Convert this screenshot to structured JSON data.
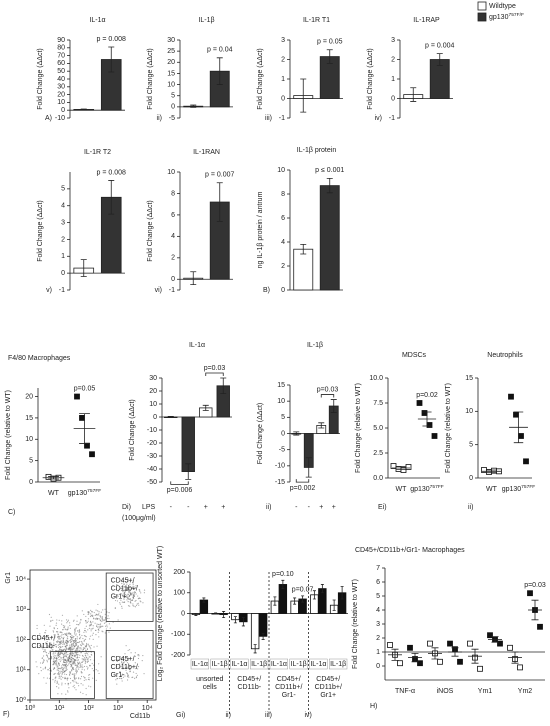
{
  "legend": [
    {
      "name": "Wildtype",
      "color": "#ffffff"
    },
    {
      "name": "gp130",
      "sup": "757F/F",
      "color": "#333333"
    }
  ],
  "chart_data": [
    {
      "type": "bar",
      "title": "IL-1α",
      "panel": "A)",
      "ylabel": "Fold Change (ΔΔct)",
      "ylim": [
        -10,
        90
      ],
      "yticks": [
        -10,
        0,
        10,
        20,
        30,
        40,
        50,
        60,
        70,
        80,
        90
      ],
      "categories": [
        null,
        null
      ],
      "values": [
        1,
        65
      ],
      "errors": [
        0.5,
        16
      ],
      "colors": [
        "#ffffff",
        "#333333"
      ],
      "p_labels": [
        null,
        "p = 0.008"
      ]
    },
    {
      "type": "bar",
      "title": "IL-1β",
      "panel": "ii)",
      "ylabel": "Fold Change (ΔΔct)",
      "ylim": [
        -5,
        30
      ],
      "yticks": [
        -5,
        0,
        5,
        10,
        15,
        20,
        25,
        30
      ],
      "categories": [
        null,
        null
      ],
      "values": [
        0.3,
        16
      ],
      "errors": [
        0.5,
        6
      ],
      "colors": [
        "#ffffff",
        "#333333"
      ],
      "p_labels": [
        null,
        "p = 0.04"
      ]
    },
    {
      "type": "bar",
      "title": "IL-1R T1",
      "panel": "iii)",
      "ylabel": "Fold Change (ΔΔct)",
      "ylim": [
        -1,
        3
      ],
      "yticks": [
        -1,
        0,
        1,
        2,
        3
      ],
      "categories": [
        null,
        null
      ],
      "values": [
        0.15,
        2.15
      ],
      "errors": [
        0.85,
        0.35
      ],
      "colors": [
        "#ffffff",
        "#333333"
      ],
      "p_labels": [
        null,
        "p = 0.05"
      ]
    },
    {
      "type": "bar",
      "title": "IL-1RAP",
      "panel": "iv)",
      "ylabel": "Fold Change (ΔΔct)",
      "ylim": [
        -1,
        3
      ],
      "yticks": [
        -1,
        0,
        1,
        2,
        3
      ],
      "categories": [
        null,
        null
      ],
      "values": [
        0.2,
        2.0
      ],
      "errors": [
        0.35,
        0.3
      ],
      "colors": [
        "#ffffff",
        "#333333"
      ],
      "p_labels": [
        null,
        "p = 0.004"
      ]
    },
    {
      "type": "bar",
      "title": "IL-1R T2",
      "panel": "v)",
      "ylabel": "Fold Change (ΔΔct)",
      "ylim": [
        -1,
        6
      ],
      "yticks": [
        -1,
        0,
        1,
        2,
        3,
        4,
        5
      ],
      "categories": [
        null,
        null
      ],
      "values": [
        0.3,
        4.5
      ],
      "errors": [
        0.5,
        1.0
      ],
      "colors": [
        "#ffffff",
        "#333333"
      ],
      "p_labels": [
        null,
        "p = 0.008"
      ]
    },
    {
      "type": "bar",
      "title": "IL-1RAN",
      "panel": "vi)",
      "ylabel": "Fold Change (ΔΔct)",
      "ylim": [
        -1,
        10
      ],
      "yticks": [
        -1,
        0,
        2,
        4,
        6,
        8,
        10
      ],
      "categories": [
        null,
        null
      ],
      "values": [
        0.1,
        7.2
      ],
      "errors": [
        0.6,
        1.8
      ],
      "colors": [
        "#ffffff",
        "#333333"
      ],
      "p_labels": [
        null,
        "p = 0.007"
      ]
    },
    {
      "type": "bar",
      "title": "IL-1β protein",
      "panel": "B)",
      "ylabel": "ng IL-1β protein / antrum",
      "ylim": [
        0,
        10
      ],
      "yticks": [
        0,
        2,
        4,
        6,
        8,
        10
      ],
      "categories": [
        null,
        null
      ],
      "values": [
        3.4,
        8.7
      ],
      "errors": [
        0.4,
        0.6
      ],
      "colors": [
        "#ffffff",
        "#333333"
      ],
      "p_labels": [
        null,
        "p ≤ 0.001"
      ]
    },
    {
      "type": "dot",
      "title": "F4/80 Macrophages",
      "panel": "C)",
      "ylabel": "Fold Change (relative to WT)",
      "ylim": [
        0,
        22
      ],
      "yticks": [
        0,
        5,
        10,
        15,
        20
      ],
      "groups": [
        {
          "label": "WT",
          "marker": "open",
          "points": [
            1.2,
            0.8,
            1.0
          ],
          "mean": 1.0,
          "error": 0.3
        },
        {
          "label": "gp130",
          "label_sup": "757FF",
          "marker": "filled",
          "points": [
            20,
            15,
            8.5,
            6.5
          ],
          "mean": 12.5,
          "error": 3.5,
          "p_label": "p=0.05"
        }
      ]
    },
    {
      "type": "bar",
      "title": "IL-1α",
      "panel": "Di)",
      "ylabel": "Fold Change (ΔΔct)",
      "ylim": [
        -50,
        30
      ],
      "yticks": [
        -50,
        -40,
        -30,
        -20,
        -10,
        0,
        10,
        20,
        30
      ],
      "categories": [
        null,
        null,
        null,
        null
      ],
      "values": [
        0,
        -42,
        7,
        24
      ],
      "errors": [
        0.5,
        6,
        2,
        6
      ],
      "colors": [
        "#ffffff",
        "#333333",
        "#ffffff",
        "#333333"
      ],
      "row_label": [
        "LPS",
        "(100μg/ml)"
      ],
      "row_values": [
        "-",
        "-",
        "+",
        "+"
      ],
      "brackets": [
        {
          "bars": [
            2,
            3
          ],
          "label": "p=0.03"
        },
        {
          "bars": [
            0,
            1
          ],
          "label": "p=0.006"
        }
      ]
    },
    {
      "type": "bar",
      "title": "IL-1β",
      "panel": "ii)",
      "ylabel": "Fold Change (ΔΔct)",
      "ylim": [
        -15,
        15
      ],
      "yticks": [
        -15,
        -10,
        -5,
        0,
        5,
        10,
        15
      ],
      "categories": [
        null,
        null,
        null,
        null
      ],
      "values": [
        0,
        -10.5,
        2.5,
        8.5
      ],
      "errors": [
        0.5,
        3,
        0.8,
        2
      ],
      "colors": [
        "#ffffff",
        "#333333",
        "#ffffff",
        "#333333"
      ],
      "row_values": [
        "-",
        "-",
        "+",
        "+"
      ],
      "brackets": [
        {
          "bars": [
            2,
            3
          ],
          "label": "p=0.03"
        },
        {
          "bars": [
            0,
            1
          ],
          "label": "p=0.002"
        }
      ]
    },
    {
      "type": "dot",
      "title": "MDSCs",
      "panel": "Ei)",
      "ylabel": "Fold Change (relative to WT)",
      "ylim": [
        0,
        10
      ],
      "yticks": [
        {
          "value": 0,
          "label": "0.0"
        },
        2.5,
        {
          "value": 5,
          "label": "5.0"
        },
        7.5,
        {
          "value": 10,
          "label": "10.0"
        }
      ],
      "groups": [
        {
          "label": "WT",
          "marker": "open",
          "points": [
            1.2,
            0.9,
            0.8,
            1.1
          ],
          "mean": 1.0,
          "error": 0.15
        },
        {
          "label": "gp130",
          "label_sup": "757FF",
          "marker": "filled",
          "points": [
            7.5,
            6.5,
            5.3,
            4.2
          ],
          "mean": 5.9,
          "error": 0.7,
          "p_label": "p=0.02"
        }
      ]
    },
    {
      "type": "dot",
      "title": "Neutrophils",
      "panel": "ii)",
      "ylabel": "Fold Change (relative to WT)",
      "ylim": [
        0,
        15
      ],
      "yticks": [
        0,
        5,
        10,
        15
      ],
      "groups": [
        {
          "label": "WT",
          "marker": "open",
          "points": [
            1.2,
            0.9,
            1.1,
            1.0
          ],
          "mean": 1.0,
          "error": 0.2
        },
        {
          "label": "gp130",
          "label_sup": "757FF",
          "marker": "filled",
          "points": [
            12.2,
            9.5,
            6.3,
            2.5
          ],
          "mean": 7.6,
          "error": 2.3
        }
      ]
    },
    {
      "type": "flow",
      "panel": "F)",
      "xlabel": "Cd11b",
      "ylabel": "Gr1",
      "xlim": [
        0,
        4.3
      ],
      "ylim": [
        0,
        4.3
      ],
      "xticks": [
        {
          "value": 0,
          "label": "10⁰"
        },
        {
          "value": 1,
          "label": "10¹"
        },
        {
          "value": 2,
          "label": "10²"
        },
        {
          "value": 3,
          "label": "10³"
        },
        {
          "value": 4,
          "label": "10⁴"
        }
      ],
      "yticks": [
        {
          "value": 0,
          "label": "10⁰"
        },
        {
          "value": 1,
          "label": "10¹"
        },
        {
          "value": 2,
          "label": "10²"
        },
        {
          "value": 3,
          "label": "10³"
        },
        {
          "value": 4,
          "label": "10⁴"
        }
      ],
      "gates": [
        [
          "CD45+/",
          "CD11b+/",
          "Gr1+"
        ],
        [
          "CD45+/",
          "CD11b-"
        ],
        [
          "CD45+/",
          "CD11b+/",
          "Gr1-"
        ]
      ]
    },
    {
      "type": "grouped_bar",
      "ylabel": "Log₂ Fold Change (relative to unsorted WT)",
      "ylim": [
        -200,
        200
      ],
      "yticks": [
        -200,
        -100,
        0,
        100,
        200
      ],
      "colors": [
        "#ffffff",
        "#111111"
      ],
      "sections": [
        {
          "panel": "Gi)",
          "label": [
            "unsorted",
            "cells"
          ],
          "subcats": [
            "IL-1α",
            "IL-1β"
          ],
          "values": [
            [
              -5,
              65
            ],
            [
              0,
              -5
            ]
          ],
          "errors": [
            [
              5,
              10
            ],
            [
              3,
              15
            ]
          ]
        },
        {
          "panel": "ii)",
          "label": [
            "CD45+/",
            "CD11b-"
          ],
          "subcats": [
            "IL-1α",
            "IL-1β"
          ],
          "values": [
            [
              -30,
              -40
            ],
            [
              -170,
              -110
            ]
          ],
          "errors": [
            [
              15,
              20
            ],
            [
              20,
              15
            ]
          ]
        },
        {
          "panel": "iii)",
          "label": [
            "CD45+/",
            "CD11b+/",
            "Gr1-"
          ],
          "subcats": [
            "IL-1α",
            "IL-1β"
          ],
          "values": [
            [
              60,
              140
            ],
            [
              60,
              70
            ]
          ],
          "errors": [
            [
              20,
              20
            ],
            [
              15,
              15
            ]
          ],
          "p_labels": [
            [
              null,
              "p=0.10"
            ],
            [
              null,
              "p=0.07"
            ]
          ]
        },
        {
          "panel": "iv)",
          "label": [
            "CD45+/",
            "CD11b+/",
            "Gr1+"
          ],
          "subcats": [
            "IL-1α",
            "IL-1β"
          ],
          "values": [
            [
              90,
              120
            ],
            [
              40,
              100
            ]
          ],
          "errors": [
            [
              20,
              20
            ],
            [
              25,
              30
            ]
          ]
        }
      ]
    },
    {
      "type": "dot",
      "title": "CD45+/CD11b+/Gr1- Macrophages",
      "panel": "H)",
      "ylabel": "Fold Change (relative to WT)",
      "ylim": [
        -1,
        7
      ],
      "yticks": [
        0,
        1,
        2,
        3,
        4,
        5,
        6,
        7
      ],
      "ref_line": 1,
      "x_labels": [
        "TNF-α",
        "iNOS",
        "Ym1",
        "Ym2"
      ],
      "groups": [
        {
          "marker": "open",
          "points": [
            1.5,
            0.8,
            0.2
          ],
          "mean": 0.8,
          "error": 0.4
        },
        {
          "marker": "filled",
          "points": [
            1.3,
            0.5,
            0.2
          ],
          "mean": 0.6,
          "error": 0.3
        },
        {
          "marker": "open",
          "points": [
            1.6,
            0.9,
            0.3
          ],
          "mean": 0.9,
          "error": 0.4
        },
        {
          "marker": "filled",
          "points": [
            1.6,
            1.2,
            0.3
          ],
          "mean": 1.0,
          "error": 0.3
        },
        {
          "marker": "open",
          "points": [
            1.6,
            0.6,
            -0.2
          ],
          "mean": 0.7,
          "error": 0.5
        },
        {
          "marker": "filled",
          "points": [
            2.2,
            1.9,
            1.6
          ],
          "mean": 1.9,
          "error": 0.2
        },
        {
          "marker": "open",
          "points": [
            1.3,
            0.5,
            -0.1
          ],
          "mean": 0.6,
          "error": 0.4
        },
        {
          "marker": "filled",
          "points": [
            5.2,
            4.0,
            2.8
          ],
          "mean": 4.0,
          "error": 0.7,
          "p_label": "p=0.03"
        }
      ]
    }
  ]
}
